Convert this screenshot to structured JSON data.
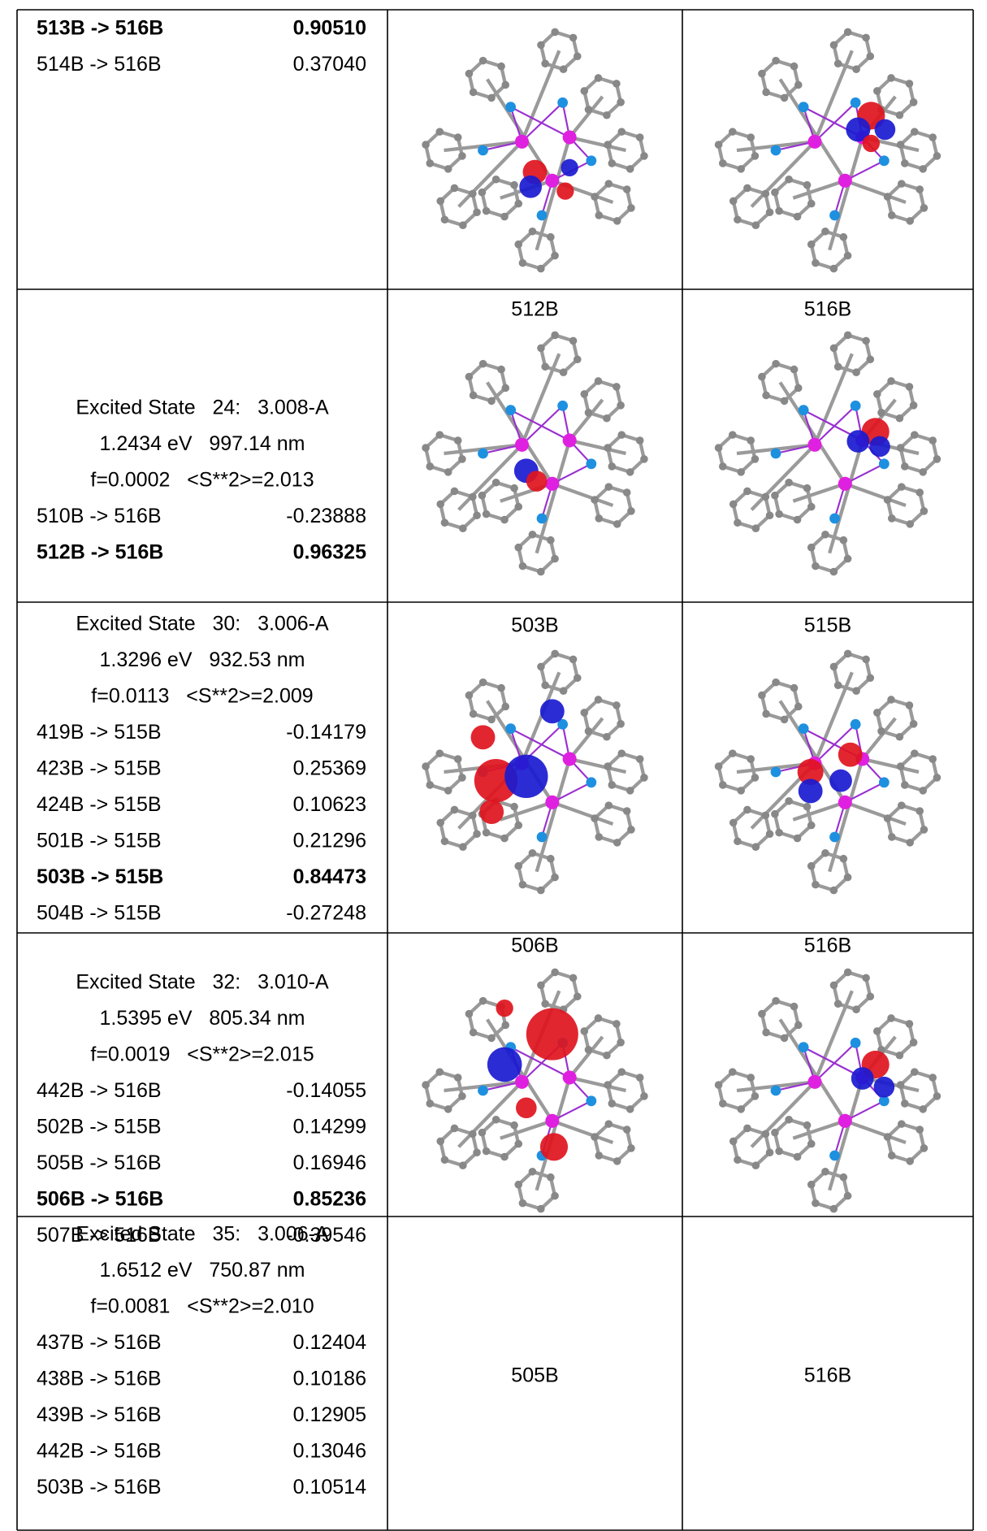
{
  "table": {
    "rows": [
      {
        "transitions": [
          {
            "pair": "513B -> 516B",
            "coef": "0.90510",
            "bold": true
          },
          {
            "pair": "514B -> 516B",
            "coef": "0.37040",
            "bold": false
          }
        ]
      },
      {
        "state": {
          "header": "Excited State   24:   3.008-A",
          "energy": "1.2434 eV   997.14 nm",
          "stats": "f=0.0002   <S**2>=2.013"
        },
        "orbitals": [
          "512B",
          "516B"
        ],
        "transitions": [
          {
            "pair": "510B -> 516B",
            "coef": "-0.23888",
            "bold": false
          },
          {
            "pair": "512B -> 516B",
            "coef": "0.96325",
            "bold": true
          }
        ]
      },
      {
        "state": {
          "header": "Excited State   30:   3.006-A",
          "energy": "1.3296 eV   932.53 nm",
          "stats": "f=0.0113   <S**2>=2.009"
        },
        "orbitals": [
          "503B",
          "515B"
        ],
        "transitions": [
          {
            "pair": "419B -> 515B",
            "coef": "-0.14179",
            "bold": false
          },
          {
            "pair": "423B -> 515B",
            "coef": "0.25369",
            "bold": false
          },
          {
            "pair": "424B -> 515B",
            "coef": "0.10623",
            "bold": false
          },
          {
            "pair": "501B -> 515B",
            "coef": "0.21296",
            "bold": false
          },
          {
            "pair": "503B -> 515B",
            "coef": "0.84473",
            "bold": true
          },
          {
            "pair": "504B -> 515B",
            "coef": "-0.27248",
            "bold": false
          }
        ]
      },
      {
        "state": {
          "header": "Excited State   32:   3.010-A",
          "energy": "1.5395 eV   805.34 nm",
          "stats": "f=0.0019   <S**2>=2.015"
        },
        "orbitals": [
          "506B",
          "516B"
        ],
        "transitions": [
          {
            "pair": "442B -> 516B",
            "coef": "-0.14055",
            "bold": false
          },
          {
            "pair": "502B -> 515B",
            "coef": "0.14299",
            "bold": false
          },
          {
            "pair": "505B -> 516B",
            "coef": "0.16946",
            "bold": false
          },
          {
            "pair": "506B -> 516B",
            "coef": "0.85236",
            "bold": true
          },
          {
            "pair": "507B -> 516B",
            "coef": "-0.39546",
            "bold": false
          }
        ]
      },
      {
        "state": {
          "header": "Excited State   35:   3.006-A",
          "energy": "1.6512 eV   750.87 nm",
          "stats": "f=0.0081   <S**2>=2.010"
        },
        "orbitals": [
          "505B",
          "516B"
        ],
        "transitions": [
          {
            "pair": "437B -> 516B",
            "coef": "0.12404",
            "bold": false
          },
          {
            "pair": "438B -> 516B",
            "coef": "0.10186",
            "bold": false
          },
          {
            "pair": "439B -> 516B",
            "coef": "0.12905",
            "bold": false
          },
          {
            "pair": "442B -> 516B",
            "coef": "0.13046",
            "bold": false
          },
          {
            "pair": "503B -> 516B",
            "coef": "0.10514",
            "bold": false
          }
        ]
      }
    ]
  }
}
